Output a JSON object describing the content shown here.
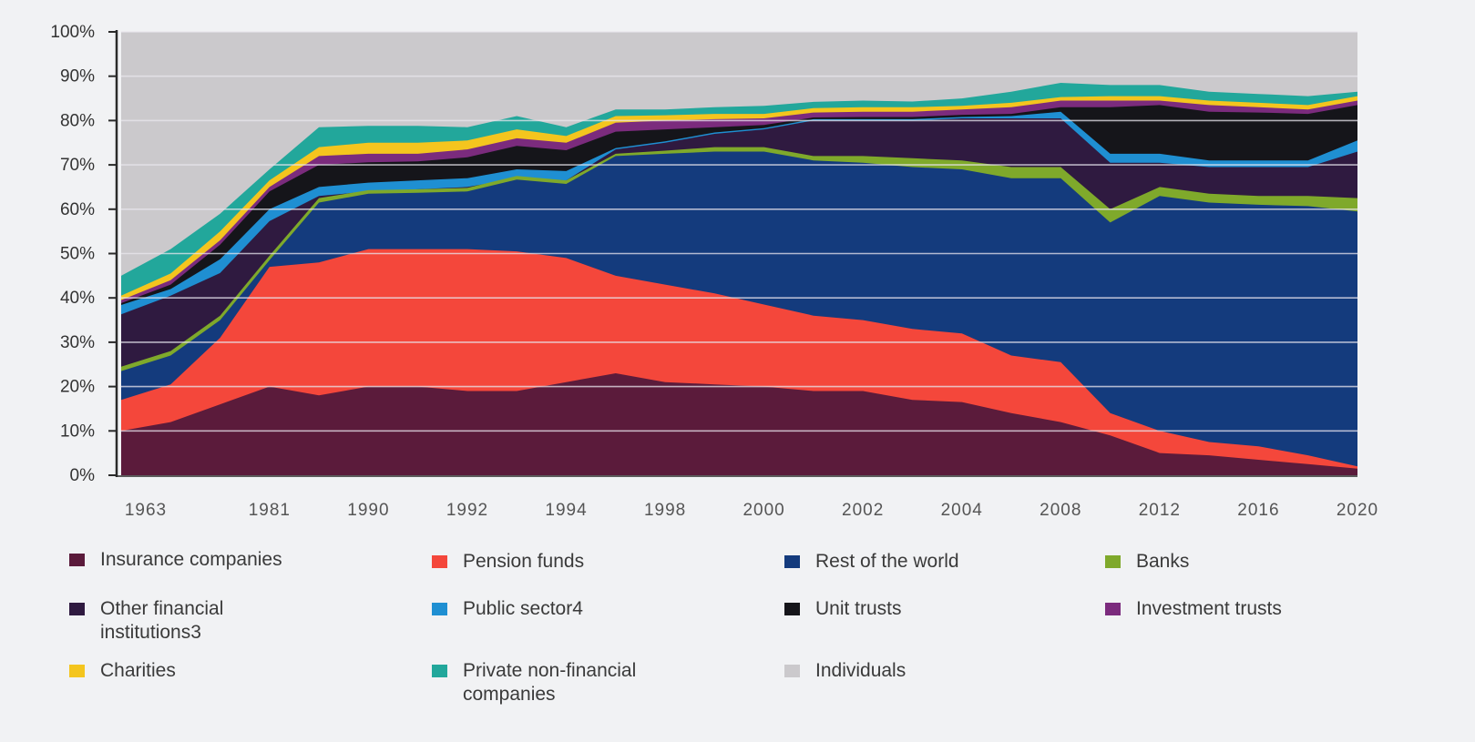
{
  "chart_data": {
    "type": "area",
    "stacked": true,
    "value_format": "cumulative share of total (%) — each series value is the top edge of its band; band size = value minus the previous series value",
    "x": [
      1963,
      1969,
      1975,
      1981,
      1989,
      1990,
      1991,
      1992,
      1993,
      1994,
      1997,
      1998,
      1999,
      2000,
      2001,
      2002,
      2003,
      2004,
      2006,
      2008,
      2010,
      2012,
      2014,
      2016,
      2018,
      2020
    ],
    "x_tick_labels": [
      "1963",
      "1981",
      "1990",
      "1992",
      "1994",
      "1998",
      "2000",
      "2002",
      "2004",
      "2008",
      "2012",
      "2016",
      "2020"
    ],
    "y_tick_labels": [
      "0%",
      "10%",
      "20%",
      "30%",
      "40%",
      "50%",
      "60%",
      "70%",
      "80%",
      "90%",
      "100%"
    ],
    "ylim": [
      0,
      100
    ],
    "grid": true,
    "legend_position": "bottom",
    "series": [
      {
        "name": "Insurance companies",
        "color": "#5b1b3b",
        "cumulative": [
          10,
          12,
          16,
          20,
          18,
          20,
          20,
          19,
          19,
          21,
          23,
          21,
          20.5,
          20,
          19,
          19,
          17,
          16.5,
          14,
          12,
          9,
          5,
          4.5,
          3.5,
          2.5,
          1.5
        ]
      },
      {
        "name": "Pension funds",
        "color": "#f4473b",
        "cumulative": [
          17,
          20.5,
          31,
          47,
          48,
          51,
          51,
          51,
          50.5,
          49,
          45,
          43,
          41,
          38.5,
          36,
          35,
          33,
          32,
          27,
          25.5,
          14,
          10,
          7.5,
          6.5,
          4.5,
          2
        ]
      },
      {
        "name": "Rest of the world",
        "color": "#143b7d",
        "cumulative": [
          23.5,
          27,
          35,
          48.5,
          61.5,
          63.5,
          63.7,
          64,
          66.7,
          65.7,
          72,
          72.5,
          73,
          73,
          71,
          70.5,
          69.5,
          69,
          67,
          67,
          57,
          63,
          61.5,
          61,
          60.7,
          59.5
        ]
      },
      {
        "name": "Banks",
        "color": "#7fa92b",
        "cumulative": [
          24.5,
          28,
          36,
          49.5,
          62.5,
          64.3,
          64.5,
          64.8,
          67.5,
          66.5,
          72.5,
          73.2,
          74,
          74,
          72,
          72,
          71.5,
          71,
          69.5,
          69.5,
          60,
          65,
          63.5,
          63,
          63,
          62.5
        ]
      },
      {
        "name": "Other financial institutions3",
        "color": "#2f1a40",
        "cumulative": [
          36.3,
          40.5,
          45.6,
          57.3,
          63,
          64,
          64.5,
          65,
          67,
          66.5,
          73.5,
          75,
          77,
          78,
          80,
          80,
          80,
          80.5,
          80.5,
          80.5,
          70.5,
          70.5,
          69.5,
          69.5,
          69.5,
          73
        ]
      },
      {
        "name": "Public sector4",
        "color": "#1f8fd2",
        "cumulative": [
          38.4,
          42,
          48.7,
          60,
          65,
          66,
          66.5,
          67,
          69,
          68.6,
          73.8,
          75.3,
          77.3,
          78.3,
          80.3,
          80.3,
          80.3,
          80.8,
          81,
          82,
          72.5,
          72.5,
          71,
          71,
          71,
          75.5
        ]
      },
      {
        "name": "Unit trusts",
        "color": "#15151a",
        "cumulative": [
          38.8,
          43,
          52,
          64,
          70,
          70.6,
          70.8,
          71.7,
          74.3,
          73.3,
          77.5,
          78,
          78.5,
          79,
          80.7,
          80.8,
          80.8,
          81.3,
          81.5,
          83,
          83,
          83.5,
          82,
          81.8,
          81.5,
          83.5
        ]
      },
      {
        "name": "Investment trusts",
        "color": "#7b2b7d",
        "cumulative": [
          39.5,
          44,
          53,
          65,
          72,
          72.5,
          72.5,
          73.5,
          76,
          75,
          79.5,
          80,
          80.3,
          80.5,
          81.8,
          82,
          82,
          82.5,
          83,
          84.5,
          84.5,
          84.5,
          83.5,
          83,
          82.5,
          84.5
        ]
      },
      {
        "name": "Charities",
        "color": "#f4c51e",
        "cumulative": [
          40.5,
          45.5,
          55,
          66.5,
          74,
          75,
          75,
          75.5,
          78,
          76.5,
          81,
          81.2,
          81.5,
          81.5,
          82.8,
          83,
          83,
          83.3,
          84,
          85.3,
          85.5,
          85.5,
          84.5,
          84,
          83.5,
          85.5
        ]
      },
      {
        "name": "Private non-financial companies",
        "color": "#22a79b",
        "cumulative": [
          45,
          51,
          59,
          69,
          78.5,
          78.8,
          78.8,
          78.5,
          81,
          78.5,
          82.5,
          82.5,
          83,
          83.3,
          84.2,
          84.5,
          84.3,
          85,
          86.5,
          88.5,
          88,
          88,
          86.5,
          86,
          85.5,
          86.5
        ]
      },
      {
        "name": "Individuals",
        "color": "#cbc9cc",
        "cumulative": [
          100,
          100,
          100,
          100,
          100,
          100,
          100,
          100,
          100,
          100,
          100,
          100,
          100,
          100,
          100,
          100,
          100,
          100,
          100,
          100,
          100,
          100,
          100,
          100,
          100,
          100
        ]
      }
    ]
  }
}
